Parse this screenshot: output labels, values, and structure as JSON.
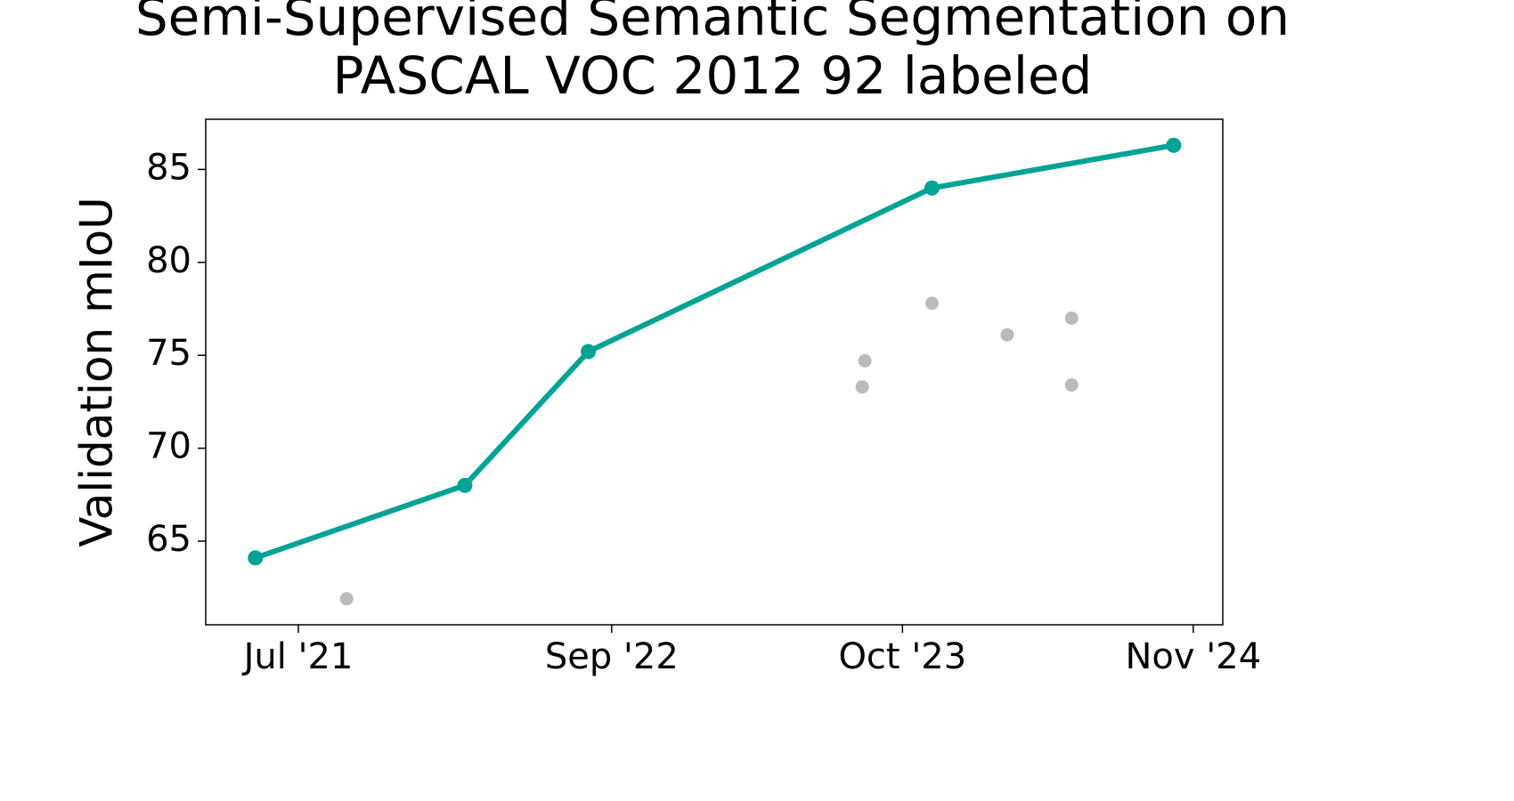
{
  "chart_data": {
    "type": "line",
    "title": "Semi-Supervised Semantic Segmentation on PASCAL VOC 2012 92 labeled",
    "y_label": "Validation mIoU",
    "xlim": [
      2021.155,
      2024.943
    ],
    "xticks": [
      {
        "value": 2021.5,
        "label": "Jul '21"
      },
      {
        "value": 2022.667,
        "label": "Sep '22"
      },
      {
        "value": 2023.75,
        "label": "Oct '23"
      },
      {
        "value": 2024.833,
        "label": "Nov '24"
      }
    ],
    "ylim": [
      60.5,
      87.7
    ],
    "yticks": [
      65,
      70,
      75,
      80,
      85
    ],
    "series": [
      {
        "kind": "line",
        "color": "#00a396",
        "x": [
          2021.34,
          2022.12,
          2022.58,
          2023.86,
          2024.76
        ],
        "values": [
          64.1,
          68.0,
          75.2,
          84.0,
          86.3
        ]
      },
      {
        "kind": "scatter",
        "color": "#bbbbbb",
        "x": [
          2021.68,
          2023.61,
          2023.6,
          2023.86,
          2024.14,
          2024.38,
          2024.38
        ],
        "values": [
          61.9,
          74.7,
          73.3,
          77.8,
          76.1,
          77.0,
          73.4
        ]
      }
    ]
  }
}
